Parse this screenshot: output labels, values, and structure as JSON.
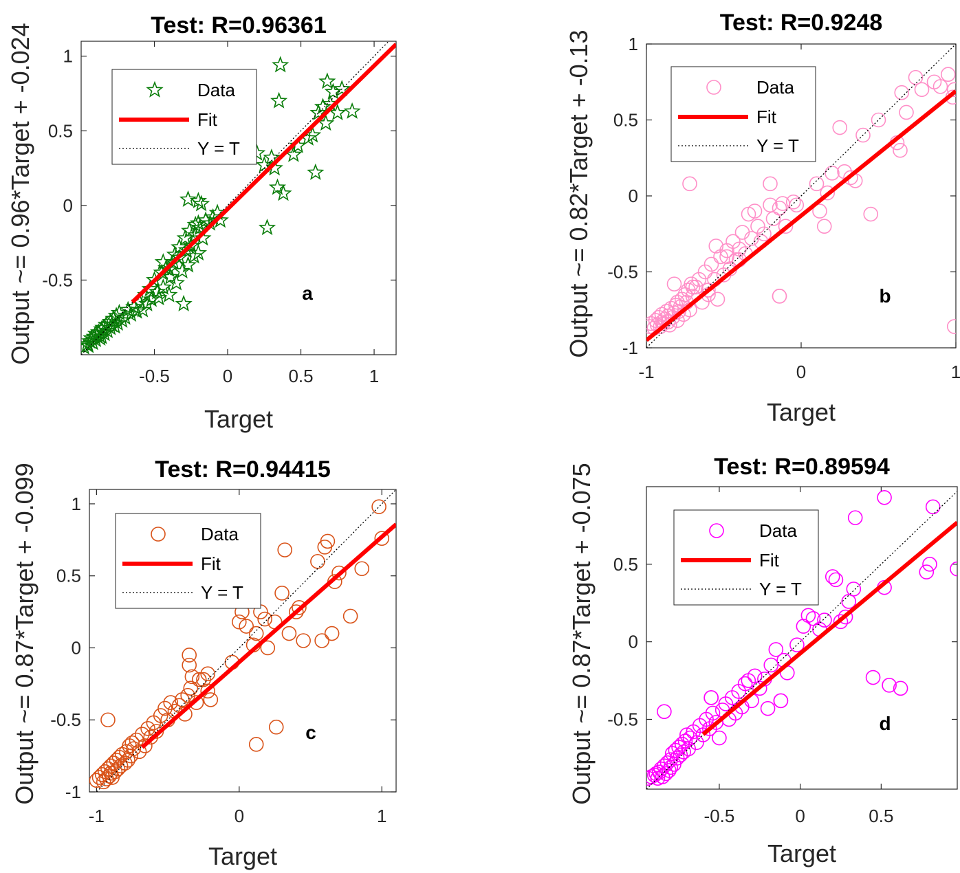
{
  "figure": {
    "panel_count": 4
  },
  "chart_data": [
    {
      "type": "scatter",
      "panel": "a",
      "title": "Test: R=0.96361",
      "xlabel": "Target",
      "ylabel": "Output ~= 0.96*Target + -0.024",
      "xlim": [
        -1,
        1.15
      ],
      "ylim": [
        -1,
        1.1
      ],
      "xticks": [
        -0.5,
        0,
        0.5,
        1
      ],
      "xtick_labels": [
        "-0.5",
        "0",
        "0.5",
        "1"
      ],
      "yticks": [
        -0.5,
        0,
        0.5,
        1
      ],
      "ytick_labels": [
        "-0.5",
        "0",
        "0.5",
        "1"
      ],
      "marker": "star",
      "color": "#0a7d0a",
      "fit": {
        "slope": 0.96,
        "intercept": -0.024,
        "range": [
          -0.65,
          1.15
        ]
      },
      "legend": {
        "data": "Data",
        "fit": "Fit",
        "identity": "Y = T",
        "position": "top-left"
      },
      "annotation": "a",
      "x": [
        -0.98,
        -0.96,
        -0.95,
        -0.94,
        -0.93,
        -0.92,
        -0.91,
        -0.9,
        -0.9,
        -0.89,
        -0.88,
        -0.87,
        -0.86,
        -0.86,
        -0.85,
        -0.84,
        -0.83,
        -0.82,
        -0.8,
        -0.8,
        -0.79,
        -0.78,
        -0.77,
        -0.76,
        -0.75,
        -0.74,
        -0.72,
        -0.7,
        -0.68,
        -0.66,
        -0.64,
        -0.62,
        -0.6,
        -0.58,
        -0.56,
        -0.55,
        -0.53,
        -0.52,
        -0.5,
        -0.48,
        -0.47,
        -0.45,
        -0.44,
        -0.42,
        -0.4,
        -0.39,
        -0.37,
        -0.35,
        -0.33,
        -0.31,
        -0.3,
        -0.28,
        -0.27,
        -0.25,
        -0.23,
        -0.22,
        -0.2,
        -0.19,
        -0.17,
        -0.15,
        -0.12,
        -0.1,
        -0.07,
        -0.05,
        -0.44,
        -0.4,
        -0.36,
        -0.33,
        -0.29,
        -0.26,
        -0.22,
        -0.2,
        -0.27,
        -0.2,
        -0.18,
        0.2,
        0.25,
        0.3,
        0.32,
        0.34,
        0.35,
        0.36,
        0.38,
        0.45,
        0.48,
        0.55,
        0.58,
        0.6,
        0.62,
        0.65,
        0.67,
        0.68,
        0.7,
        0.72,
        0.75,
        0.78,
        0.85,
        0.27
      ],
      "y": [
        -0.95,
        -0.93,
        -0.94,
        -0.91,
        -0.89,
        -0.92,
        -0.88,
        -0.9,
        -0.86,
        -0.87,
        -0.85,
        -0.89,
        -0.83,
        -0.88,
        -0.82,
        -0.86,
        -0.8,
        -0.84,
        -0.82,
        -0.78,
        -0.8,
        -0.76,
        -0.81,
        -0.74,
        -0.79,
        -0.72,
        -0.77,
        -0.75,
        -0.7,
        -0.73,
        -0.68,
        -0.71,
        -0.65,
        -0.7,
        -0.6,
        -0.66,
        -0.56,
        -0.63,
        -0.5,
        -0.58,
        -0.62,
        -0.45,
        -0.55,
        -0.42,
        -0.6,
        -0.48,
        -0.38,
        -0.52,
        -0.35,
        -0.44,
        -0.66,
        -0.3,
        -0.4,
        -0.27,
        -0.34,
        -0.2,
        -0.32,
        -0.15,
        -0.22,
        -0.1,
        -0.12,
        -0.08,
        -0.05,
        -0.1,
        -0.38,
        -0.43,
        -0.33,
        -0.28,
        -0.22,
        -0.17,
        -0.13,
        -0.12,
        0.04,
        0.03,
        0.01,
        0.35,
        0.27,
        0.32,
        0.25,
        0.12,
        0.7,
        0.94,
        0.08,
        0.34,
        0.4,
        0.45,
        0.47,
        0.22,
        0.62,
        0.66,
        0.55,
        0.83,
        0.68,
        0.76,
        0.62,
        0.78,
        0.63,
        -0.15
      ]
    },
    {
      "type": "scatter",
      "panel": "b",
      "title": "Test: R=0.9248",
      "xlabel": "Target",
      "ylabel": "Output ~= 0.82*Target + -0.13",
      "xlim": [
        -1,
        1
      ],
      "ylim": [
        -1,
        1
      ],
      "xticks": [
        -1,
        0,
        1
      ],
      "xtick_labels": [
        "-1",
        "0",
        "1"
      ],
      "yticks": [
        -1,
        -0.5,
        0,
        0.5,
        1
      ],
      "ytick_labels": [
        "-1",
        "-0.5",
        "0",
        "0.5",
        "1"
      ],
      "marker": "circle",
      "color": "#ff8fc8",
      "fit": {
        "slope": 0.82,
        "intercept": -0.13,
        "range": [
          -1,
          1
        ]
      },
      "legend": {
        "data": "Data",
        "fit": "Fit",
        "identity": "Y = T",
        "position": "top-left"
      },
      "annotation": "b",
      "x": [
        -0.98,
        -0.97,
        -0.95,
        -0.94,
        -0.93,
        -0.92,
        -0.91,
        -0.9,
        -0.9,
        -0.89,
        -0.88,
        -0.87,
        -0.86,
        -0.86,
        -0.85,
        -0.84,
        -0.83,
        -0.82,
        -0.81,
        -0.8,
        -0.8,
        -0.79,
        -0.78,
        -0.77,
        -0.76,
        -0.75,
        -0.74,
        -0.73,
        -0.72,
        -0.71,
        -0.7,
        -0.68,
        -0.66,
        -0.64,
        -0.62,
        -0.6,
        -0.58,
        -0.56,
        -0.54,
        -0.52,
        -0.5,
        -0.48,
        -0.46,
        -0.44,
        -0.42,
        -0.4,
        -0.38,
        -0.36,
        -0.34,
        -0.32,
        -0.3,
        -0.28,
        -0.26,
        -0.24,
        -0.2,
        -0.18,
        -0.14,
        -0.12,
        -0.1,
        -0.05,
        -0.03,
        0.1,
        0.12,
        0.15,
        0.17,
        0.2,
        0.25,
        0.28,
        0.32,
        0.35,
        0.4,
        0.45,
        0.5,
        0.62,
        0.64,
        0.65,
        0.68,
        0.74,
        0.78,
        0.86,
        0.9,
        0.95,
        0.98,
        0.99,
        0.99,
        -0.82,
        -0.55,
        -0.48,
        -0.4,
        -0.6,
        -0.7,
        -0.14,
        -0.2
      ],
      "y": [
        -0.86,
        -0.84,
        -0.87,
        -0.82,
        -0.85,
        -0.8,
        -0.86,
        -0.83,
        -0.78,
        -0.84,
        -0.81,
        -0.76,
        -0.83,
        -0.79,
        -0.85,
        -0.74,
        -0.8,
        -0.77,
        -0.72,
        -0.82,
        -0.7,
        -0.76,
        -0.73,
        -0.68,
        -0.78,
        -0.65,
        -0.7,
        -0.62,
        -0.75,
        -0.58,
        -0.66,
        -0.6,
        -0.55,
        -0.7,
        -0.5,
        -0.62,
        -0.45,
        -0.55,
        -0.68,
        -0.4,
        -0.52,
        -0.36,
        -0.48,
        -0.3,
        -0.42,
        -0.35,
        -0.24,
        -0.38,
        -0.12,
        -0.28,
        -0.1,
        -0.2,
        -0.3,
        -0.25,
        -0.06,
        -0.15,
        -0.08,
        -0.05,
        -0.2,
        -0.04,
        -0.06,
        0.08,
        -0.1,
        -0.2,
        0.02,
        0.15,
        0.45,
        0.16,
        0.12,
        0.1,
        0.4,
        -0.12,
        0.5,
        0.35,
        0.3,
        0.68,
        0.55,
        0.78,
        0.7,
        0.75,
        0.72,
        0.8,
        0.65,
        0.7,
        -0.86,
        -0.58,
        -0.33,
        -0.4,
        -0.42,
        -0.65,
        -0.6,
        -0.66,
        0.08
      ],
      "extra_points": {
        "x": [
          -0.72,
          -0.14
        ],
        "y": [
          0.08,
          -0.66
        ]
      }
    },
    {
      "type": "scatter",
      "panel": "c",
      "title": "Test: R=0.94415",
      "xlabel": "Target",
      "ylabel": "Output ~= 0.87*Target + -0.099",
      "xlim": [
        -1.05,
        1.1
      ],
      "ylim": [
        -1,
        1.1
      ],
      "xticks": [
        -1,
        0,
        1
      ],
      "xtick_labels": [
        "-1",
        "0",
        "1"
      ],
      "yticks": [
        -1,
        -0.5,
        0,
        0.5,
        1
      ],
      "ytick_labels": [
        "-1",
        "-0.5",
        "0",
        "0.5",
        "1"
      ],
      "marker": "circle",
      "color": "#d95319",
      "fit": {
        "slope": 0.87,
        "intercept": -0.099,
        "range": [
          -0.68,
          1.1
        ]
      },
      "legend": {
        "data": "Data",
        "fit": "Fit",
        "identity": "Y = T",
        "position": "top-left"
      },
      "annotation": "c",
      "x": [
        -1.0,
        -0.98,
        -0.96,
        -0.95,
        -0.94,
        -0.93,
        -0.92,
        -0.91,
        -0.9,
        -0.9,
        -0.89,
        -0.88,
        -0.87,
        -0.86,
        -0.85,
        -0.84,
        -0.83,
        -0.82,
        -0.8,
        -0.79,
        -0.78,
        -0.77,
        -0.76,
        -0.75,
        -0.74,
        -0.72,
        -0.7,
        -0.68,
        -0.66,
        -0.64,
        -0.62,
        -0.6,
        -0.58,
        -0.55,
        -0.52,
        -0.5,
        -0.48,
        -0.45,
        -0.42,
        -0.4,
        -0.38,
        -0.36,
        -0.34,
        -0.3,
        -0.28,
        -0.2,
        -0.22,
        -0.25,
        -0.35,
        -0.33,
        -0.05,
        0.0,
        0.02,
        0.05,
        0.1,
        0.12,
        0.15,
        0.18,
        0.2,
        0.25,
        0.3,
        0.32,
        0.35,
        0.4,
        0.42,
        0.45,
        0.55,
        0.58,
        0.6,
        0.62,
        0.65,
        0.67,
        0.7,
        0.78,
        0.86,
        0.98,
        1.0,
        -0.92,
        0.12,
        0.26,
        -0.22,
        -0.35
      ],
      "y": [
        -0.92,
        -0.9,
        -0.88,
        -0.93,
        -0.86,
        -0.91,
        -0.84,
        -0.89,
        -0.82,
        -0.87,
        -0.9,
        -0.8,
        -0.86,
        -0.78,
        -0.84,
        -0.76,
        -0.82,
        -0.74,
        -0.8,
        -0.72,
        -0.78,
        -0.68,
        -0.75,
        -0.66,
        -0.7,
        -0.64,
        -0.72,
        -0.6,
        -0.68,
        -0.56,
        -0.62,
        -0.52,
        -0.58,
        -0.47,
        -0.42,
        -0.5,
        -0.38,
        -0.44,
        -0.4,
        -0.36,
        -0.46,
        -0.33,
        -0.28,
        -0.38,
        -0.22,
        -0.36,
        -0.3,
        -0.22,
        -0.12,
        -0.2,
        -0.1,
        0.18,
        0.25,
        0.15,
        0.02,
        0.1,
        0.25,
        0.2,
        0.0,
        0.18,
        0.38,
        0.68,
        0.1,
        0.25,
        0.28,
        0.05,
        0.6,
        0.05,
        0.7,
        0.74,
        0.1,
        0.46,
        0.52,
        0.22,
        0.55,
        0.98,
        0.76,
        -0.5,
        -0.67,
        -0.55,
        -0.18,
        -0.05
      ]
    },
    {
      "type": "scatter",
      "panel": "d",
      "title": "Test: R=0.89594",
      "xlabel": "Target",
      "ylabel": "Output ~= 0.87*Target + -0.075",
      "xlim": [
        -0.95,
        0.97
      ],
      "ylim": [
        -0.95,
        1.0
      ],
      "xticks": [
        -0.5,
        0,
        0.5
      ],
      "xtick_labels": [
        "-0.5",
        "0",
        "0.5"
      ],
      "yticks": [
        -0.5,
        0,
        0.5
      ],
      "ytick_labels": [
        "-0.5",
        "0",
        "0.5"
      ],
      "marker": "circle",
      "color": "#ff00ff",
      "fit": {
        "slope": 0.87,
        "intercept": -0.075,
        "range": [
          -0.6,
          0.97
        ]
      },
      "legend": {
        "data": "Data",
        "fit": "Fit",
        "identity": "Y = T",
        "position": "top-left"
      },
      "annotation": "d",
      "x": [
        -0.94,
        -0.92,
        -0.9,
        -0.89,
        -0.88,
        -0.87,
        -0.86,
        -0.85,
        -0.84,
        -0.83,
        -0.82,
        -0.81,
        -0.8,
        -0.8,
        -0.79,
        -0.78,
        -0.77,
        -0.76,
        -0.75,
        -0.74,
        -0.73,
        -0.72,
        -0.71,
        -0.7,
        -0.69,
        -0.68,
        -0.66,
        -0.64,
        -0.62,
        -0.6,
        -0.58,
        -0.56,
        -0.54,
        -0.52,
        -0.5,
        -0.48,
        -0.46,
        -0.44,
        -0.42,
        -0.4,
        -0.38,
        -0.36,
        -0.34,
        -0.3,
        -0.28,
        -0.25,
        -0.22,
        -0.2,
        -0.18,
        -0.15,
        -0.1,
        -0.08,
        -0.02,
        0.02,
        0.05,
        0.08,
        0.12,
        0.15,
        0.2,
        0.22,
        0.25,
        0.28,
        0.3,
        0.33,
        0.45,
        0.52,
        0.55,
        0.62,
        0.78,
        0.8,
        0.82,
        0.97,
        -0.84,
        -0.55,
        -0.32,
        -0.12
      ],
      "y": [
        -0.88,
        -0.87,
        -0.86,
        -0.85,
        -0.88,
        -0.84,
        -0.82,
        -0.87,
        -0.8,
        -0.85,
        -0.78,
        -0.83,
        -0.76,
        -0.81,
        -0.72,
        -0.79,
        -0.7,
        -0.75,
        -0.68,
        -0.73,
        -0.66,
        -0.71,
        -0.64,
        -0.6,
        -0.69,
        -0.62,
        -0.58,
        -0.65,
        -0.54,
        -0.6,
        -0.5,
        -0.56,
        -0.46,
        -0.52,
        -0.62,
        -0.44,
        -0.4,
        -0.5,
        -0.36,
        -0.46,
        -0.32,
        -0.42,
        -0.27,
        -0.38,
        -0.22,
        -0.3,
        -0.24,
        -0.43,
        -0.15,
        -0.05,
        -0.12,
        -0.2,
        -0.02,
        0.1,
        0.17,
        0.15,
        0.08,
        0.14,
        0.42,
        0.4,
        0.13,
        0.16,
        0.26,
        0.34,
        -0.23,
        0.35,
        -0.28,
        -0.3,
        0.45,
        0.5,
        0.87,
        0.47,
        -0.45,
        -0.36,
        -0.25,
        -0.38
      ],
      "extra_points": {
        "x": [
          0.52,
          0.34,
          -0.12,
          -0.55
        ],
        "y": [
          0.93,
          0.8,
          -0.38,
          -0.36
        ]
      }
    }
  ]
}
